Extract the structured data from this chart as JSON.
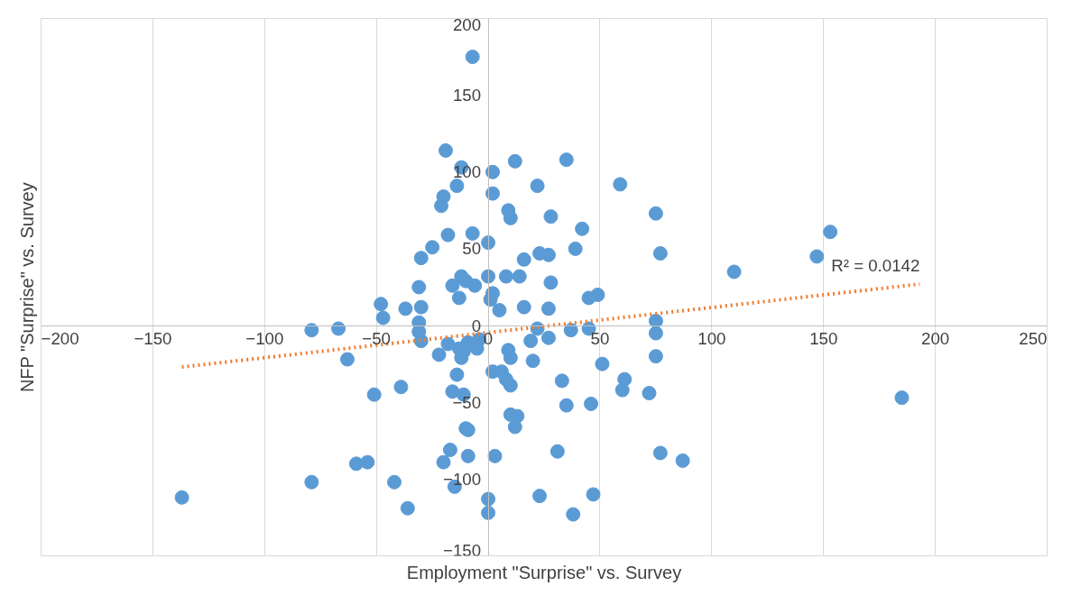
{
  "chart_data": {
    "type": "scatter",
    "xlabel": "Employment \"Surprise\" vs. Survey",
    "ylabel": "NFP \"Surprise\" vs. Survey",
    "xlim": [
      -200,
      250
    ],
    "ylim": [
      -150,
      200
    ],
    "xticks": [
      -200,
      -150,
      -100,
      -50,
      0,
      50,
      100,
      150,
      200,
      250
    ],
    "yticks": [
      -150,
      -100,
      -50,
      0,
      50,
      100,
      150,
      200
    ],
    "grid": "x",
    "marker": "circle",
    "annotations": [
      "R² = 0.0142"
    ],
    "series": [
      {
        "color": "#5b9bd5",
        "x": [
          -7,
          -19,
          -12,
          12,
          35,
          2,
          -20,
          -14,
          -21,
          2,
          22,
          59,
          9,
          10,
          28,
          75,
          -7,
          -18,
          42,
          0,
          -25,
          153,
          23,
          27,
          39,
          77,
          147,
          16,
          -30,
          -12,
          -10,
          -6,
          -16,
          0,
          8,
          14,
          28,
          110,
          -31,
          -13,
          2,
          1,
          5,
          16,
          27,
          45,
          49,
          -48,
          -37,
          -30,
          -47,
          -31,
          -79,
          -67,
          -31,
          -30,
          22,
          37,
          45,
          75,
          75,
          -63,
          -22,
          -18,
          -13,
          -11,
          -12,
          -9,
          -5,
          -4,
          9,
          10,
          19,
          27,
          20,
          2,
          6,
          8,
          10,
          -14,
          51,
          75,
          33,
          61,
          -39,
          -51,
          -16,
          -11,
          35,
          46,
          60,
          72,
          185,
          10,
          13,
          12,
          -10,
          -9,
          -17,
          -20,
          -15,
          -9,
          3,
          31,
          77,
          87,
          -54,
          -59,
          -79,
          -42,
          -137,
          -36,
          0,
          0,
          23,
          47,
          38
        ],
        "values": [
          175,
          114,
          103,
          107,
          108,
          100,
          84,
          91,
          78,
          86,
          91,
          92,
          75,
          70,
          71,
          73,
          60,
          59,
          63,
          54,
          51,
          61,
          47,
          46,
          50,
          47,
          45,
          43,
          44,
          32,
          29,
          26,
          26,
          32,
          32,
          32,
          28,
          35,
          25,
          18,
          21,
          17,
          10,
          12,
          11,
          18,
          20,
          14,
          11,
          12,
          5,
          2,
          -3,
          -2,
          -4,
          -10,
          -2,
          -3,
          -2,
          3,
          -5,
          -22,
          -19,
          -12,
          -15,
          -17,
          -21,
          -11,
          -15,
          -9,
          -16,
          -21,
          -10,
          -8,
          -23,
          -30,
          -30,
          -35,
          -39,
          -32,
          -25,
          -20,
          -36,
          -35,
          -40,
          -45,
          -43,
          -45,
          -52,
          -51,
          -42,
          -44,
          -47,
          -58,
          -59,
          -66,
          -67,
          -68,
          -81,
          -89,
          -105,
          -85,
          -85,
          -82,
          -83,
          -88,
          -89,
          -90,
          -102,
          -102,
          -112,
          -119,
          -113,
          -122,
          -111,
          -110,
          -123
        ]
      },
      {
        "type": "line",
        "color": "#ed7d31",
        "line_style": "dotted",
        "marker": "none",
        "x": [
          -137,
          193
        ],
        "values": [
          -27,
          27
        ]
      }
    ]
  }
}
